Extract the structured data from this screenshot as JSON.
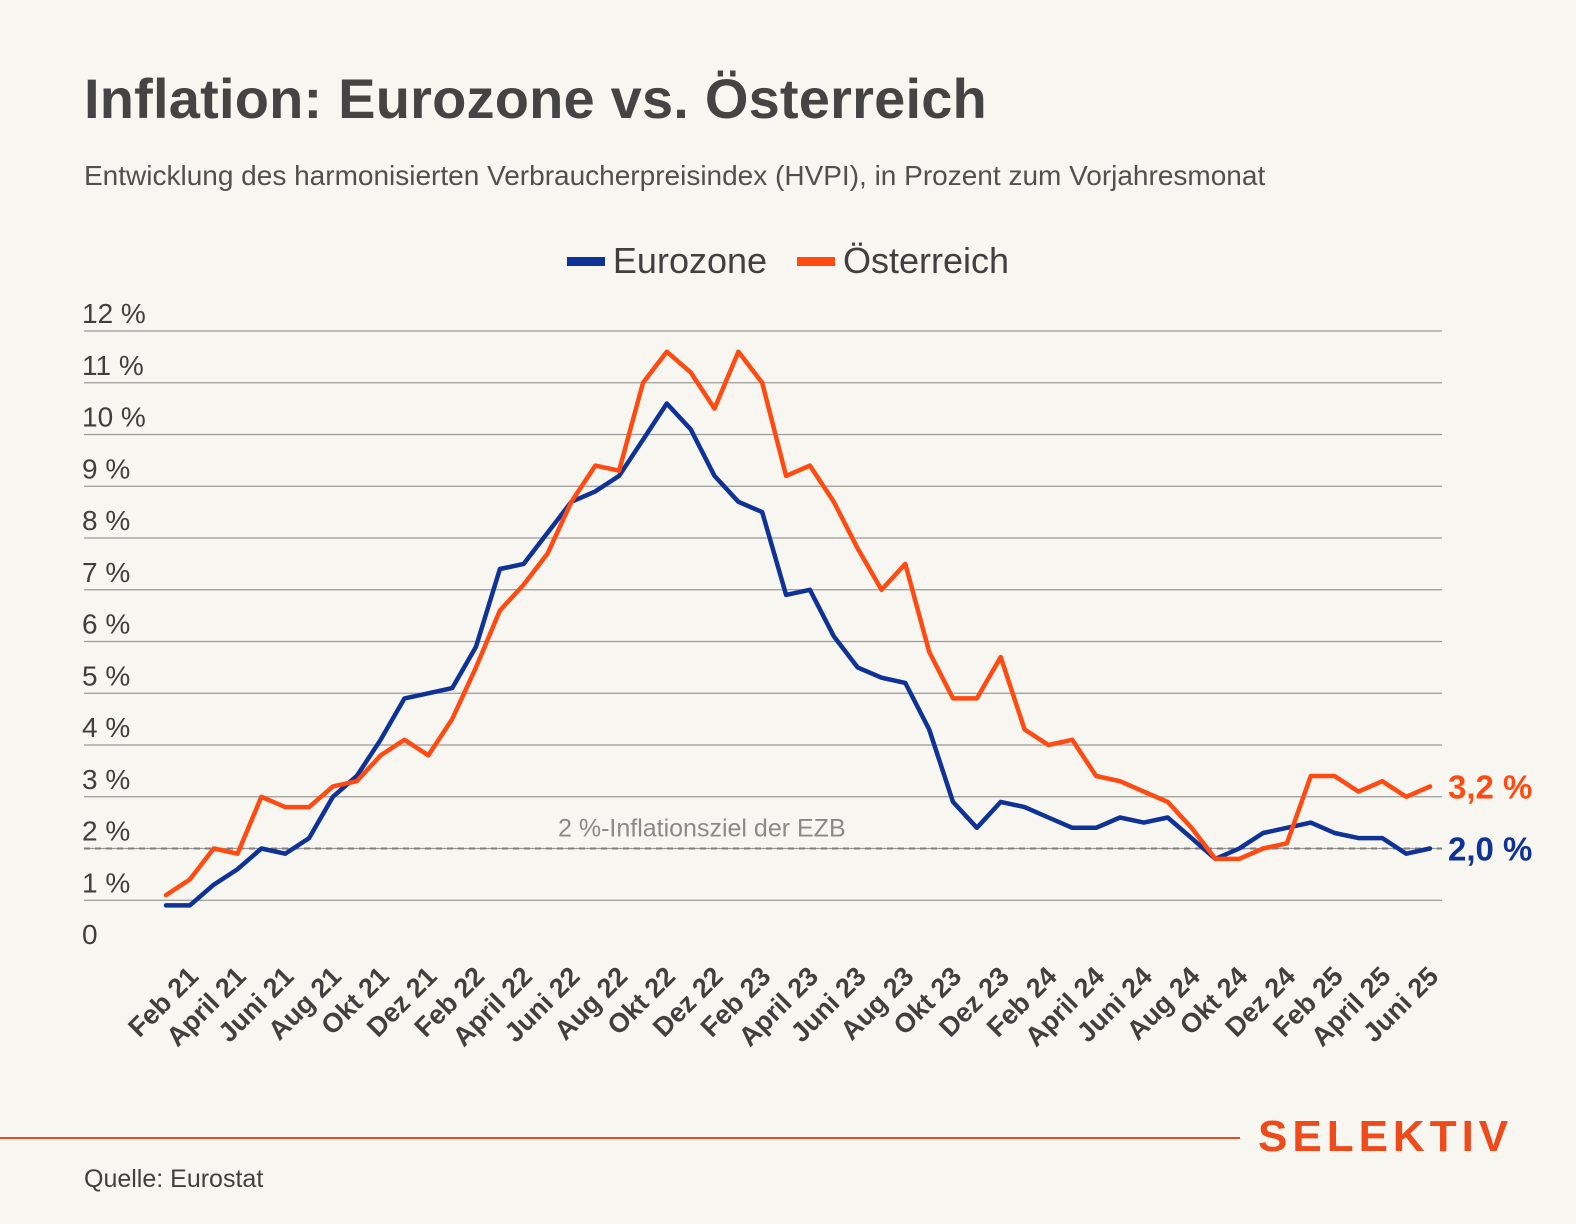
{
  "title": "Inflation: Eurozone vs. Österreich",
  "subtitle": "Entwicklung des harmonisierten Verbraucherpreisindex (HVPI), in Prozent zum Vorjahresmonat",
  "source": "Quelle: Eurostat",
  "brand": "SELEKTIV",
  "colors": {
    "eurozone": "#0f3296",
    "oesterreich": "#ff4b12",
    "background": "#f8f6f0",
    "brand": "#ee4a1a"
  },
  "chart_data": {
    "type": "line",
    "title": "Inflation: Eurozone vs. Österreich",
    "subtitle": "Entwicklung des harmonisierten Verbraucherpreisindex (HVPI), in Prozent zum Vorjahresmonat",
    "xlabel": "",
    "ylabel": "",
    "ylim": [
      0,
      12
    ],
    "grid": true,
    "legend_position": "top-center",
    "y_ticks": [
      "0",
      "1 %",
      "2 %",
      "3 %",
      "4 %",
      "5 %",
      "6 %",
      "7 %",
      "8 %",
      "9 %",
      "10 %",
      "11 %",
      "12 %"
    ],
    "x_tick_labels": [
      "Feb 21",
      "April 21",
      "Juni 21",
      "Aug 21",
      "Okt 21",
      "Dez 21",
      "Feb 22",
      "April 22",
      "Juni 22",
      "Aug 22",
      "Okt 22",
      "Dez 22",
      "Feb 23",
      "April 23",
      "Juni 23",
      "Aug 23",
      "Okt 23",
      "Dez 23",
      "Feb 24",
      "April 24",
      "Juni 24",
      "Aug 24",
      "Okt 24",
      "Dez 24",
      "Feb 25",
      "April 25",
      "Juni 25"
    ],
    "x": [
      "Jan 21",
      "Feb 21",
      "Mar 21",
      "Apr 21",
      "May 21",
      "Jun 21",
      "Jul 21",
      "Aug 21",
      "Sep 21",
      "Oct 21",
      "Nov 21",
      "Dec 21",
      "Jan 22",
      "Feb 22",
      "Mar 22",
      "Apr 22",
      "May 22",
      "Jun 22",
      "Jul 22",
      "Aug 22",
      "Sep 22",
      "Oct 22",
      "Nov 22",
      "Dec 22",
      "Jan 23",
      "Feb 23",
      "Mar 23",
      "Apr 23",
      "May 23",
      "Jun 23",
      "Jul 23",
      "Aug 23",
      "Sep 23",
      "Oct 23",
      "Nov 23",
      "Dec 23",
      "Jan 24",
      "Feb 24",
      "Mar 24",
      "Apr 24",
      "May 24",
      "Jun 24",
      "Jul 24",
      "Aug 24",
      "Sep 24",
      "Oct 24",
      "Nov 24",
      "Dec 24",
      "Jan 25",
      "Feb 25",
      "Mar 25",
      "Apr 25",
      "May 25",
      "Jun 25"
    ],
    "series": [
      {
        "name": "Eurozone",
        "color": "#0f3296",
        "end_label": "2,0 %",
        "values": [
          0.9,
          0.9,
          1.3,
          1.6,
          2.0,
          1.9,
          2.2,
          3.0,
          3.4,
          4.1,
          4.9,
          5.0,
          5.1,
          5.9,
          7.4,
          7.5,
          8.1,
          8.7,
          8.9,
          9.2,
          9.9,
          10.6,
          10.1,
          9.2,
          8.7,
          8.5,
          6.9,
          7.0,
          6.1,
          5.5,
          5.3,
          5.2,
          4.3,
          2.9,
          2.4,
          2.9,
          2.8,
          2.6,
          2.4,
          2.4,
          2.6,
          2.5,
          2.6,
          2.2,
          1.8,
          2.0,
          2.3,
          2.4,
          2.5,
          2.3,
          2.2,
          2.2,
          1.9,
          2.0
        ]
      },
      {
        "name": "Österreich",
        "color": "#ff4b12",
        "end_label": "3,2 %",
        "values": [
          1.1,
          1.4,
          2.0,
          1.9,
          3.0,
          2.8,
          2.8,
          3.2,
          3.3,
          3.8,
          4.1,
          3.8,
          4.5,
          5.5,
          6.6,
          7.1,
          7.7,
          8.7,
          9.4,
          9.3,
          11.0,
          11.6,
          11.2,
          10.5,
          11.6,
          11.0,
          9.2,
          9.4,
          8.7,
          7.8,
          7.0,
          7.5,
          5.8,
          4.9,
          4.9,
          5.7,
          4.3,
          4.0,
          4.1,
          3.4,
          3.3,
          3.1,
          2.9,
          2.4,
          1.8,
          1.8,
          2.0,
          2.1,
          3.4,
          3.4,
          3.1,
          3.3,
          3.0,
          3.2
        ]
      }
    ],
    "reference_line": {
      "value": 2.0,
      "label": "2 %-Inflationsziel der EZB",
      "style": "dashed"
    }
  }
}
